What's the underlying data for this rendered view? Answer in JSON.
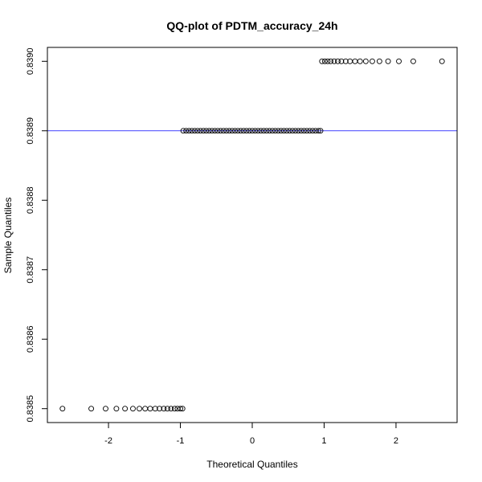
{
  "chart_data": {
    "type": "scatter",
    "title": "QQ-plot of PDTM_accuracy_24h",
    "xlabel": "Theoretical Quantiles",
    "ylabel": "Sample Quantiles",
    "xlim": [
      -2.85,
      2.85
    ],
    "ylim": [
      0.83848,
      0.83902
    ],
    "xticks": [
      -2,
      -1,
      0,
      1,
      2
    ],
    "xtick_labels": [
      "-2",
      "-1",
      "0",
      "1",
      "2"
    ],
    "yticks": [
      0.8385,
      0.8386,
      0.8387,
      0.8388,
      0.8389,
      0.839
    ],
    "ytick_labels": [
      "0.8385",
      "0.8386",
      "0.8387",
      "0.8388",
      "0.8389",
      "0.8390"
    ],
    "reference_line": {
      "y": 0.8389,
      "color": "#0000ff"
    },
    "series": [
      {
        "values_y": 0.8385,
        "x": [
          -2.64,
          -2.24,
          -2.04,
          -1.89,
          -1.77,
          -1.66,
          -1.57,
          -1.49,
          -1.42,
          -1.35,
          -1.29,
          -1.23,
          -1.18,
          -1.13,
          -1.08,
          -1.04,
          -1.0,
          -0.97
        ]
      },
      {
        "values_y": 0.8389,
        "x": [
          -0.96,
          -0.92,
          -0.88,
          -0.84,
          -0.8,
          -0.76,
          -0.72,
          -0.68,
          -0.64,
          -0.6,
          -0.56,
          -0.52,
          -0.48,
          -0.44,
          -0.4,
          -0.36,
          -0.32,
          -0.28,
          -0.24,
          -0.2,
          -0.16,
          -0.12,
          -0.08,
          -0.04,
          0.0,
          0.04,
          0.08,
          0.12,
          0.16,
          0.2,
          0.24,
          0.28,
          0.32,
          0.36,
          0.4,
          0.44,
          0.48,
          0.52,
          0.56,
          0.6,
          0.64,
          0.68,
          0.72,
          0.76,
          0.8,
          0.84,
          0.88,
          0.92,
          0.95
        ]
      },
      {
        "values_y": 0.839,
        "x": [
          0.97,
          1.01,
          1.05,
          1.09,
          1.14,
          1.19,
          1.24,
          1.3,
          1.36,
          1.43,
          1.5,
          1.58,
          1.67,
          1.77,
          1.89,
          2.04,
          2.24,
          2.64
        ]
      }
    ]
  }
}
